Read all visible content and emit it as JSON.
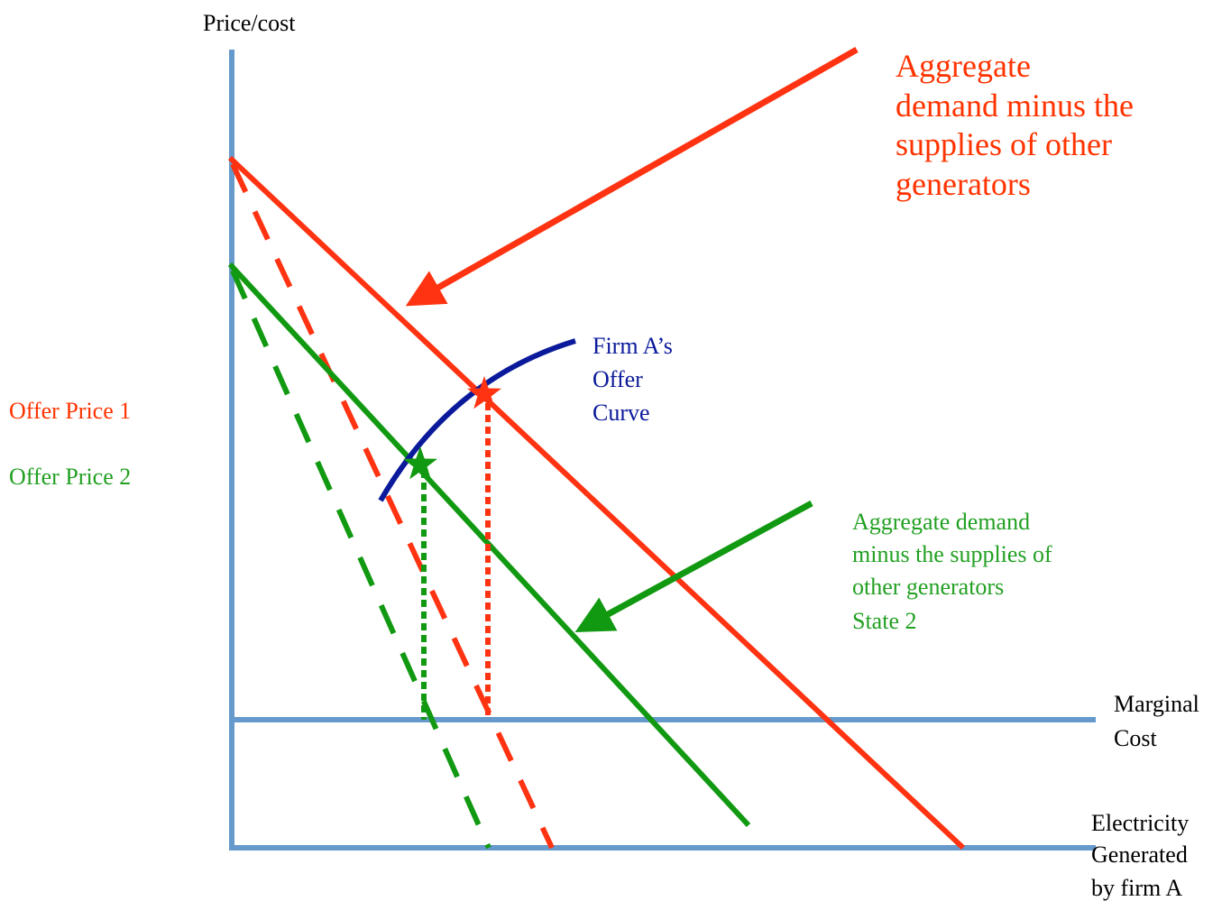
{
  "axes": {
    "y_label": "Price/cost",
    "x_label": [
      "Electricity",
      "Generated",
      "by firm A"
    ],
    "marginal_cost": [
      "Marginal",
      "Cost"
    ]
  },
  "annotations": {
    "state1": [
      "Aggregate",
      "demand minus the",
      "supplies of other",
      "generators"
    ],
    "state2": [
      "Aggregate demand",
      "minus the supplies of",
      "other generators",
      "State 2"
    ],
    "offer_curve": [
      "Firm A’s",
      "Offer",
      "Curve"
    ],
    "offer_price_1": "Offer Price 1",
    "offer_price_2": "Offer Price 2"
  }
}
